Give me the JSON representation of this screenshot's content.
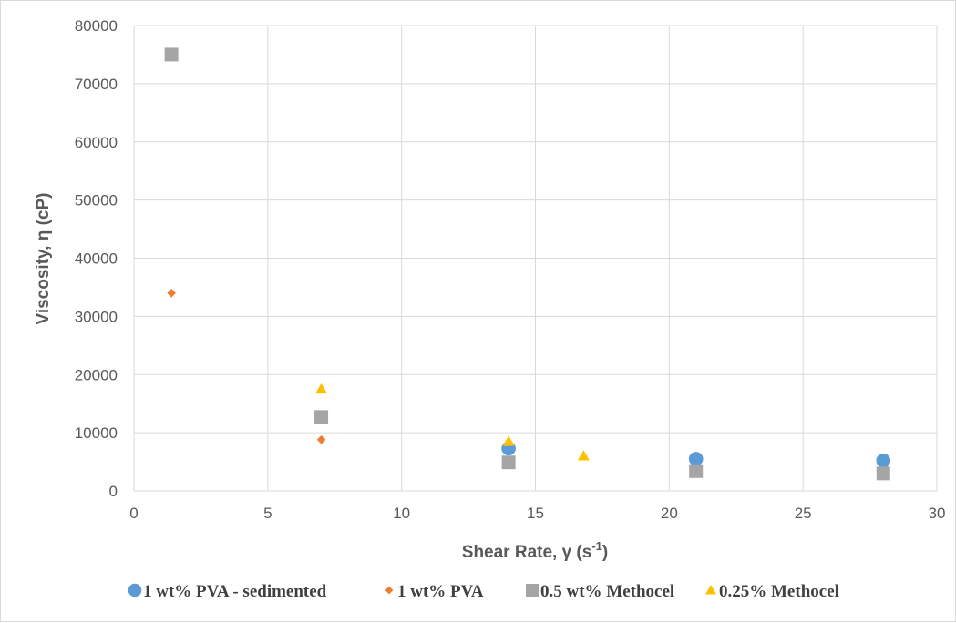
{
  "chart_data": {
    "type": "scatter",
    "title": "",
    "xlabel": {
      "main": "Shear Rate, γ (s",
      "superscript": "-1",
      "suffix": ")"
    },
    "ylabel": "Viscosity, η (cP)",
    "xlim": [
      0,
      30
    ],
    "ylim": [
      0,
      80000
    ],
    "x_ticks": [
      "0",
      "5",
      "10",
      "15",
      "20",
      "25",
      "30"
    ],
    "y_ticks": [
      "0",
      "10000",
      "20000",
      "30000",
      "40000",
      "50000",
      "60000",
      "70000",
      "80000"
    ],
    "grid": true,
    "legend_position": "bottom",
    "series": [
      {
        "name": "1 wt% PVA - sedimented",
        "marker": "circle",
        "color": "#5b9bd5",
        "points": [
          [
            14,
            7300
          ],
          [
            21,
            5500
          ],
          [
            28,
            5200
          ]
        ]
      },
      {
        "name": "1 wt% PVA",
        "marker": "diamond",
        "color": "#ed7d31",
        "points": [
          [
            1.4,
            34000
          ],
          [
            7,
            8800
          ]
        ]
      },
      {
        "name": "0.5 wt% Methocel",
        "marker": "square",
        "color": "#a5a5a5",
        "points": [
          [
            1.4,
            75000
          ],
          [
            7,
            12700
          ],
          [
            14,
            4900
          ],
          [
            21,
            3400
          ],
          [
            28,
            3000
          ]
        ]
      },
      {
        "name": "0.25% Methocel",
        "marker": "triangle",
        "color": "#ffc000",
        "points": [
          [
            7,
            17500
          ],
          [
            14,
            8500
          ],
          [
            16.8,
            6000
          ]
        ]
      }
    ]
  }
}
